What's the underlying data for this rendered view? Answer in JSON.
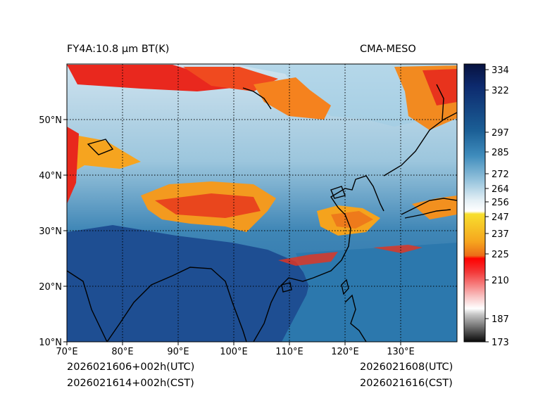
{
  "title": {
    "product": "FY4A:10.8 µm BT(K)",
    "model": "CMA-MESO"
  },
  "timestamps": {
    "left_utc": "2026021606+002h(UTC)",
    "left_cst": "2026021614+002h(CST)",
    "right_utc": "2026021608(UTC)",
    "right_cst": "2026021616(CST)"
  },
  "map": {
    "lon_labels": [
      "70°E",
      "80°E",
      "90°E",
      "100°E",
      "110°E",
      "120°E",
      "130°E"
    ],
    "lat_labels": [
      "10°N",
      "20°N",
      "30°N",
      "40°N",
      "50°N"
    ]
  },
  "colorbar": {
    "unit": "K",
    "ticks": [
      "334",
      "322",
      "297",
      "285",
      "272",
      "264",
      "256",
      "247",
      "237",
      "225",
      "210",
      "187",
      "173"
    ]
  },
  "colors": {
    "cold_cloud": "#e8201c",
    "mid_cloud": "#f7a21d",
    "clear_land": "#2d7fb0",
    "warm_surface": "#1a4f8f",
    "coastline": "#000000"
  }
}
